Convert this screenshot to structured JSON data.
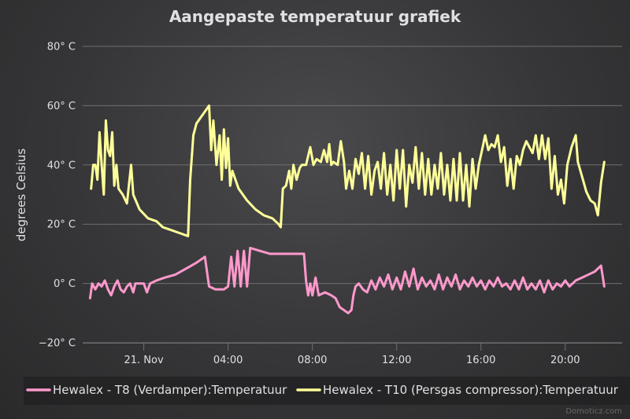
{
  "chart_data": {
    "type": "line",
    "title": "Aangepaste temperatuur grafiek",
    "ylabel": "degrees Celsius",
    "xlabel": "",
    "ylim": [
      -20,
      80
    ],
    "yticks": [
      {
        "value": 80,
        "label": "80° C"
      },
      {
        "value": 60,
        "label": "60° C"
      },
      {
        "value": 40,
        "label": "40° C"
      },
      {
        "value": 20,
        "label": "20° C"
      },
      {
        "value": 0,
        "label": "0° C"
      },
      {
        "value": -20,
        "label": "−20° C"
      }
    ],
    "x_unit": "hours since midnight 21 Nov",
    "xlim": [
      -2.9,
      22.7
    ],
    "xticks": [
      {
        "value": 0,
        "label": "21. Nov"
      },
      {
        "value": 4,
        "label": "04:00"
      },
      {
        "value": 8,
        "label": "08:00"
      },
      {
        "value": 12,
        "label": "12:00"
      },
      {
        "value": 16,
        "label": "16:00"
      },
      {
        "value": 20,
        "label": "20:00"
      }
    ],
    "grid": true,
    "legend_position": "bottom",
    "series": [
      {
        "name": "Hewalex - T8 (Verdamper):Temperatuur",
        "color": "#ff99cc",
        "points": [
          [
            -2.55,
            -5
          ],
          [
            -2.45,
            0
          ],
          [
            -2.3,
            -2
          ],
          [
            -2.15,
            0
          ],
          [
            -2.0,
            -1
          ],
          [
            -1.85,
            1
          ],
          [
            -1.7,
            -2
          ],
          [
            -1.55,
            -4
          ],
          [
            -1.4,
            -1
          ],
          [
            -1.25,
            1
          ],
          [
            -1.1,
            -2
          ],
          [
            -0.95,
            -3
          ],
          [
            -0.8,
            -1
          ],
          [
            -0.65,
            0
          ],
          [
            -0.5,
            -3
          ],
          [
            -0.4,
            0
          ],
          [
            -0.3,
            0
          ],
          [
            0.0,
            0
          ],
          [
            0.15,
            -3
          ],
          [
            0.3,
            0
          ],
          [
            0.6,
            1
          ],
          [
            1.0,
            2
          ],
          [
            1.5,
            3
          ],
          [
            2.0,
            5
          ],
          [
            2.5,
            7
          ],
          [
            2.9,
            9
          ],
          [
            3.1,
            -1
          ],
          [
            3.4,
            -2
          ],
          [
            3.8,
            -2
          ],
          [
            4.0,
            -1
          ],
          [
            4.15,
            9
          ],
          [
            4.3,
            -1
          ],
          [
            4.45,
            11
          ],
          [
            4.6,
            -1
          ],
          [
            4.75,
            11
          ],
          [
            4.9,
            -1
          ],
          [
            5.05,
            12
          ],
          [
            5.5,
            11
          ],
          [
            6.0,
            10
          ],
          [
            6.5,
            10
          ],
          [
            7.0,
            10
          ],
          [
            7.6,
            10
          ],
          [
            7.7,
            1
          ],
          [
            7.8,
            -4
          ],
          [
            7.9,
            0
          ],
          [
            8.0,
            -4
          ],
          [
            8.15,
            2
          ],
          [
            8.3,
            -4
          ],
          [
            8.6,
            -3
          ],
          [
            8.9,
            -4
          ],
          [
            9.1,
            -5
          ],
          [
            9.3,
            -8
          ],
          [
            9.5,
            -9
          ],
          [
            9.7,
            -10
          ],
          [
            9.85,
            -9
          ],
          [
            9.95,
            -4
          ],
          [
            10.05,
            -1
          ],
          [
            10.2,
            0
          ],
          [
            10.4,
            -2
          ],
          [
            10.6,
            -3
          ],
          [
            10.8,
            1
          ],
          [
            11.0,
            -2
          ],
          [
            11.2,
            2
          ],
          [
            11.4,
            -1
          ],
          [
            11.6,
            3
          ],
          [
            11.8,
            -2
          ],
          [
            12.0,
            2
          ],
          [
            12.2,
            -2
          ],
          [
            12.4,
            4
          ],
          [
            12.6,
            -1
          ],
          [
            12.8,
            5
          ],
          [
            13.0,
            -2
          ],
          [
            13.2,
            2
          ],
          [
            13.4,
            -1
          ],
          [
            13.6,
            1
          ],
          [
            13.8,
            -2
          ],
          [
            14.0,
            3
          ],
          [
            14.2,
            -2
          ],
          [
            14.4,
            2
          ],
          [
            14.6,
            -1
          ],
          [
            14.8,
            3
          ],
          [
            15.0,
            -2
          ],
          [
            15.2,
            1
          ],
          [
            15.4,
            -1
          ],
          [
            15.6,
            2
          ],
          [
            15.8,
            -1
          ],
          [
            16.0,
            1
          ],
          [
            16.2,
            -2
          ],
          [
            16.4,
            1
          ],
          [
            16.6,
            -1
          ],
          [
            16.8,
            2
          ],
          [
            17.0,
            -1
          ],
          [
            17.2,
            0
          ],
          [
            17.4,
            -2
          ],
          [
            17.6,
            1
          ],
          [
            17.8,
            -2
          ],
          [
            18.0,
            2
          ],
          [
            18.2,
            -2
          ],
          [
            18.4,
            0
          ],
          [
            18.6,
            -2
          ],
          [
            18.8,
            1
          ],
          [
            19.0,
            -3
          ],
          [
            19.2,
            1
          ],
          [
            19.4,
            -2
          ],
          [
            19.6,
            0
          ],
          [
            19.8,
            -1
          ],
          [
            20.0,
            1
          ],
          [
            20.2,
            -1
          ],
          [
            20.5,
            1
          ],
          [
            20.8,
            2
          ],
          [
            21.1,
            3
          ],
          [
            21.4,
            4
          ],
          [
            21.7,
            6
          ],
          [
            21.85,
            -1
          ]
        ]
      },
      {
        "name": "Hewalex - T10 (Persgas compressor):Temperatuur",
        "color": "#ffff99",
        "points": [
          [
            -2.5,
            32
          ],
          [
            -2.4,
            40
          ],
          [
            -2.3,
            40
          ],
          [
            -2.2,
            35
          ],
          [
            -2.1,
            51
          ],
          [
            -2.0,
            40
          ],
          [
            -1.9,
            30
          ],
          [
            -1.8,
            55
          ],
          [
            -1.7,
            45
          ],
          [
            -1.6,
            43
          ],
          [
            -1.5,
            51
          ],
          [
            -1.4,
            33
          ],
          [
            -1.3,
            40
          ],
          [
            -1.2,
            32
          ],
          [
            -1.0,
            30
          ],
          [
            -0.8,
            27
          ],
          [
            -0.6,
            40
          ],
          [
            -0.5,
            30
          ],
          [
            -0.2,
            25
          ],
          [
            0.2,
            22
          ],
          [
            0.6,
            21
          ],
          [
            0.9,
            19
          ],
          [
            1.3,
            18
          ],
          [
            1.7,
            17
          ],
          [
            2.1,
            16
          ],
          [
            2.2,
            35
          ],
          [
            2.35,
            50
          ],
          [
            2.5,
            54
          ],
          [
            2.8,
            57
          ],
          [
            3.1,
            60
          ],
          [
            3.2,
            45
          ],
          [
            3.3,
            55
          ],
          [
            3.45,
            40
          ],
          [
            3.6,
            50
          ],
          [
            3.7,
            35
          ],
          [
            3.8,
            52
          ],
          [
            3.9,
            39
          ],
          [
            4.0,
            49
          ],
          [
            4.1,
            33
          ],
          [
            4.2,
            38
          ],
          [
            4.5,
            32
          ],
          [
            4.9,
            28
          ],
          [
            5.3,
            25
          ],
          [
            5.7,
            23
          ],
          [
            6.1,
            22
          ],
          [
            6.4,
            20
          ],
          [
            6.5,
            19
          ],
          [
            6.6,
            32
          ],
          [
            6.75,
            33
          ],
          [
            6.9,
            38
          ],
          [
            7.0,
            32
          ],
          [
            7.1,
            40
          ],
          [
            7.25,
            35
          ],
          [
            7.4,
            39
          ],
          [
            7.5,
            40
          ],
          [
            7.7,
            40
          ],
          [
            7.9,
            46
          ],
          [
            8.05,
            40
          ],
          [
            8.2,
            42
          ],
          [
            8.4,
            41
          ],
          [
            8.55,
            45
          ],
          [
            8.7,
            41
          ],
          [
            8.8,
            47
          ],
          [
            8.9,
            40
          ],
          [
            9.0,
            41
          ],
          [
            9.2,
            40
          ],
          [
            9.35,
            48
          ],
          [
            9.5,
            41
          ],
          [
            9.6,
            32
          ],
          [
            9.75,
            38
          ],
          [
            9.9,
            32
          ],
          [
            10.05,
            42
          ],
          [
            10.2,
            37
          ],
          [
            10.35,
            44
          ],
          [
            10.5,
            32
          ],
          [
            10.65,
            43
          ],
          [
            10.8,
            30
          ],
          [
            10.95,
            38
          ],
          [
            11.1,
            41
          ],
          [
            11.25,
            32
          ],
          [
            11.4,
            44
          ],
          [
            11.55,
            30
          ],
          [
            11.7,
            40
          ],
          [
            11.85,
            28
          ],
          [
            12.0,
            45
          ],
          [
            12.15,
            32
          ],
          [
            12.3,
            45
          ],
          [
            12.45,
            26
          ],
          [
            12.6,
            40
          ],
          [
            12.75,
            34
          ],
          [
            12.9,
            46
          ],
          [
            13.05,
            32
          ],
          [
            13.2,
            44
          ],
          [
            13.35,
            30
          ],
          [
            13.5,
            42
          ],
          [
            13.65,
            30
          ],
          [
            13.8,
            40
          ],
          [
            13.95,
            32
          ],
          [
            14.1,
            44
          ],
          [
            14.25,
            30
          ],
          [
            14.4,
            40
          ],
          [
            14.55,
            28
          ],
          [
            14.7,
            42
          ],
          [
            14.85,
            28
          ],
          [
            15.0,
            44
          ],
          [
            15.15,
            28
          ],
          [
            15.3,
            40
          ],
          [
            15.45,
            26
          ],
          [
            15.6,
            42
          ],
          [
            15.75,
            32
          ],
          [
            15.9,
            40
          ],
          [
            16.05,
            45
          ],
          [
            16.2,
            50
          ],
          [
            16.35,
            45
          ],
          [
            16.5,
            47
          ],
          [
            16.65,
            46
          ],
          [
            16.8,
            50
          ],
          [
            16.95,
            41
          ],
          [
            17.1,
            46
          ],
          [
            17.25,
            33
          ],
          [
            17.4,
            42
          ],
          [
            17.55,
            32
          ],
          [
            17.7,
            43
          ],
          [
            17.85,
            40
          ],
          [
            18.0,
            45
          ],
          [
            18.15,
            48
          ],
          [
            18.3,
            46
          ],
          [
            18.45,
            44
          ],
          [
            18.6,
            50
          ],
          [
            18.75,
            42
          ],
          [
            18.9,
            50
          ],
          [
            19.05,
            42
          ],
          [
            19.2,
            49
          ],
          [
            19.35,
            32
          ],
          [
            19.5,
            43
          ],
          [
            19.65,
            30
          ],
          [
            19.8,
            35
          ],
          [
            19.95,
            27
          ],
          [
            20.1,
            40
          ],
          [
            20.3,
            46
          ],
          [
            20.5,
            50
          ],
          [
            20.6,
            41
          ],
          [
            20.8,
            36
          ],
          [
            21.0,
            31
          ],
          [
            21.2,
            28
          ],
          [
            21.4,
            27
          ],
          [
            21.55,
            23
          ],
          [
            21.7,
            34
          ],
          [
            21.85,
            41
          ]
        ]
      }
    ]
  },
  "credit": "Domoticz.com"
}
